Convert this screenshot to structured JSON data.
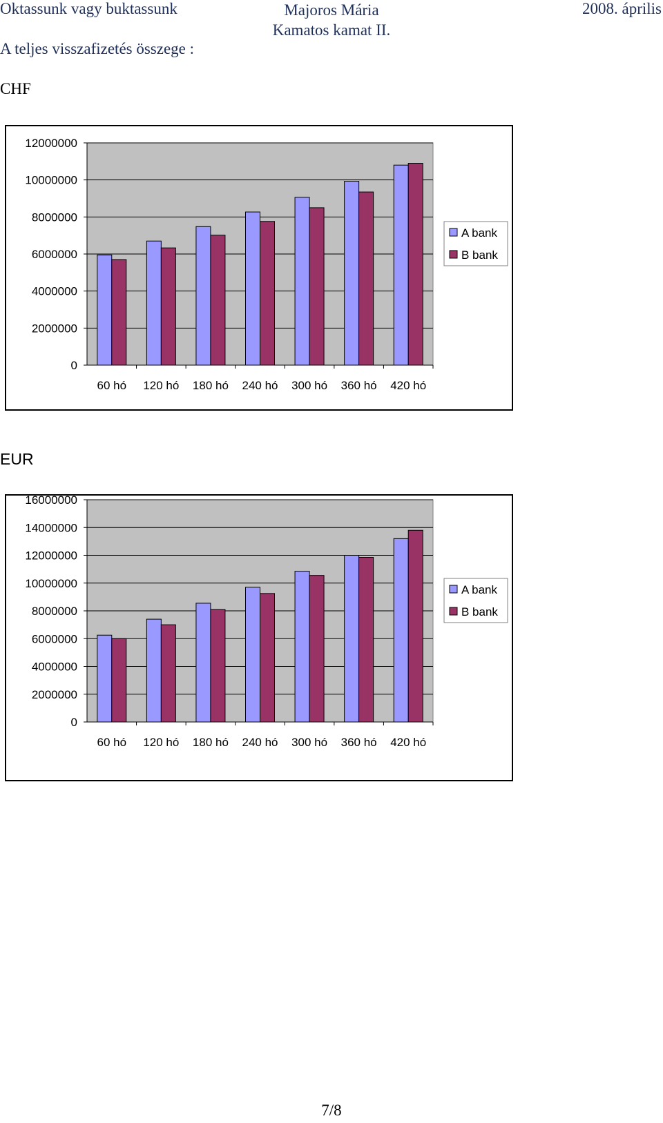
{
  "header": {
    "left": "Oktassunk vagy buktassunk",
    "center_line1": "Majoros Mária",
    "center_line2": "Kamatos kamat II.",
    "right": "2008. április"
  },
  "intro": "A teljes visszafizetés összege :",
  "sections": [
    {
      "label": "CHF"
    },
    {
      "label": "EUR"
    }
  ],
  "colors": {
    "a_bank": "#9999ff",
    "b_bank": "#993366",
    "plot_bg": "#c0c0c0"
  },
  "chart_data": [
    {
      "type": "bar",
      "categories": [
        "60 hó",
        "120 hó",
        "180 hó",
        "240 hó",
        "300 hó",
        "360 hó",
        "420 hó"
      ],
      "series": [
        {
          "name": "A bank",
          "values": [
            5950000,
            6700000,
            7480000,
            8270000,
            9060000,
            9930000,
            10800000
          ]
        },
        {
          "name": "B bank",
          "values": [
            5700000,
            6330000,
            7020000,
            7760000,
            8500000,
            9350000,
            10900000
          ]
        }
      ],
      "yticks": [
        "0",
        "2000000",
        "4000000",
        "6000000",
        "8000000",
        "10000000",
        "12000000"
      ],
      "ylim": [
        0,
        12000000
      ],
      "grid": true,
      "legend": "right"
    },
    {
      "type": "bar",
      "categories": [
        "60 hó",
        "120 hó",
        "180 hó",
        "240 hó",
        "300 hó",
        "360 hó",
        "420 hó"
      ],
      "series": [
        {
          "name": "A bank",
          "values": [
            6250000,
            7400000,
            8550000,
            9700000,
            10850000,
            12000000,
            13200000
          ]
        },
        {
          "name": "B bank",
          "values": [
            6000000,
            7000000,
            8100000,
            9250000,
            10550000,
            11850000,
            13800000
          ]
        }
      ],
      "yticks": [
        "0",
        "2000000",
        "4000000",
        "6000000",
        "8000000",
        "10000000",
        "12000000",
        "14000000",
        "16000000"
      ],
      "ylim": [
        0,
        16000000
      ],
      "grid": true,
      "legend": "right"
    }
  ],
  "page_number": "7/8"
}
